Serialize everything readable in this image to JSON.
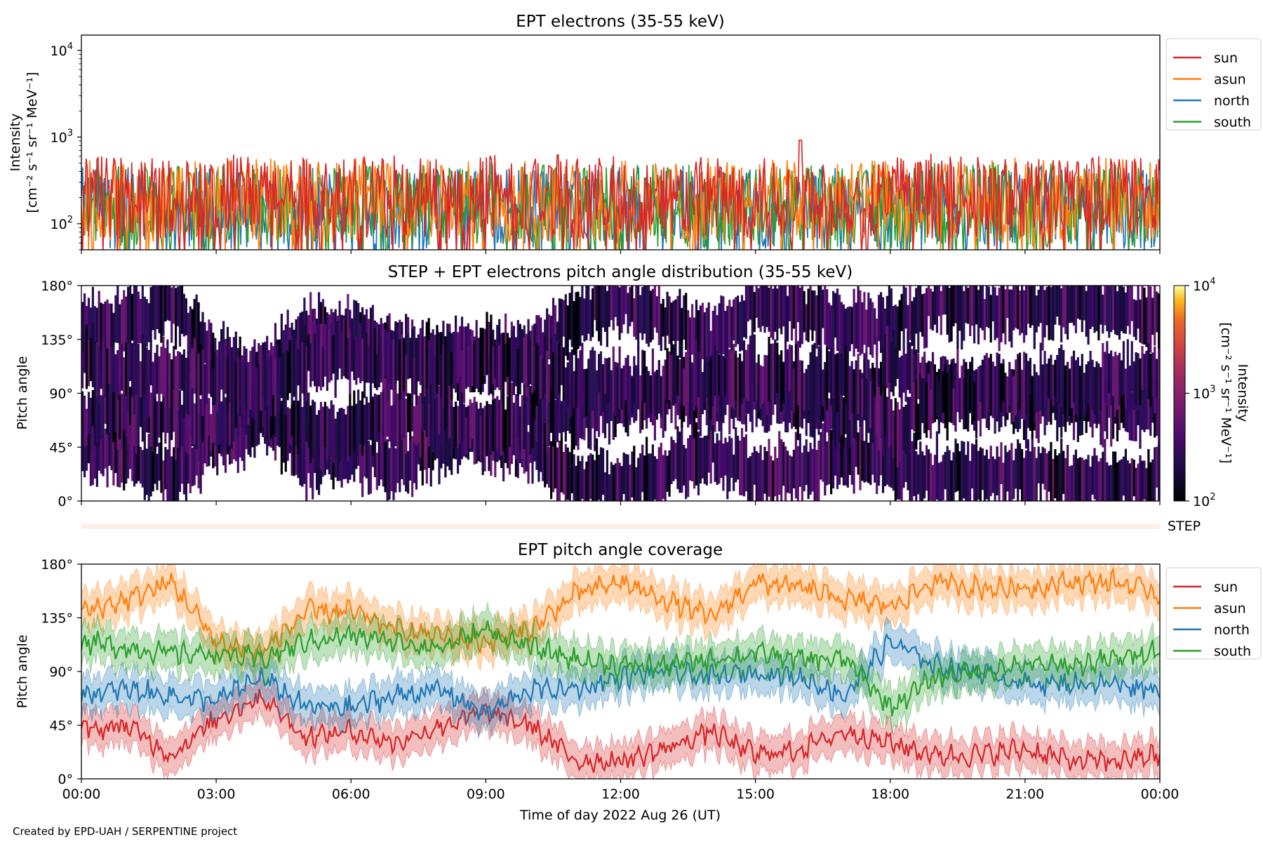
{
  "figure": {
    "xlabel": "Time of day 2022 Aug 26 (UT)",
    "credit": "Created by EPD-UAH / SERPENTINE project",
    "xticks": [
      "00:00",
      "03:00",
      "06:00",
      "09:00",
      "12:00",
      "15:00",
      "18:00",
      "21:00",
      "00:00"
    ]
  },
  "chart_data": [
    {
      "type": "line",
      "title": "EPT electrons (35-55 keV)",
      "ylabel_line1": "Intensity",
      "ylabel_line2": "[cm⁻² s⁻¹ sr⁻¹ MeV⁻¹]",
      "yscale": "log",
      "ylim": [
        50,
        15000
      ],
      "yticks": [
        {
          "value": 100,
          "base": "10",
          "exp": "2"
        },
        {
          "value": 1000,
          "base": "10",
          "exp": "3"
        },
        {
          "value": 10000,
          "base": "10",
          "exp": "4"
        }
      ],
      "legend_position": "outside right",
      "series": [
        {
          "name": "sun",
          "color": "#d62728",
          "typical": 200,
          "peak": 920,
          "peak_time_h": 16.0
        },
        {
          "name": "asun",
          "color": "#ff7f0e",
          "typical": 180,
          "peak": 800
        },
        {
          "name": "north",
          "color": "#1f77b4",
          "typical": 150,
          "peak": 650
        },
        {
          "name": "south",
          "color": "#2ca02c",
          "typical": 160,
          "peak": 750
        }
      ]
    },
    {
      "type": "heatmap",
      "title": "STEP + EPT electrons pitch angle distribution (35-55 keV)",
      "ylabel": "Pitch angle",
      "ylim": [
        0,
        180
      ],
      "yticks": [
        "0°",
        "45°",
        "90°",
        "135°",
        "180°"
      ],
      "colorbar": {
        "scale": "log",
        "range": [
          100,
          10000
        ],
        "colormap": "inferno",
        "ticks": [
          {
            "base": "10",
            "exp": "2"
          },
          {
            "base": "10",
            "exp": "3"
          },
          {
            "base": "10",
            "exp": "4"
          }
        ],
        "label": "Intensity\n[cm⁻² s⁻¹ sr⁻¹ MeV⁻¹]"
      },
      "step_label": "STEP"
    },
    {
      "type": "line",
      "title": "EPT pitch angle coverage",
      "ylabel": "Pitch angle",
      "ylim": [
        0,
        180
      ],
      "yticks": [
        "0°",
        "45°",
        "90°",
        "135°",
        "180°"
      ],
      "legend_position": "outside right",
      "shaded_band": "±15°",
      "series": [
        {
          "name": "sun",
          "color": "#d62728",
          "x_hours": [
            0,
            1,
            2,
            3,
            4,
            5,
            6,
            7,
            8,
            9,
            10,
            11,
            12,
            13,
            14,
            15,
            16,
            17,
            18,
            19,
            20,
            21,
            22,
            23,
            24
          ],
          "values": [
            40,
            45,
            20,
            50,
            70,
            35,
            40,
            30,
            45,
            55,
            45,
            15,
            15,
            25,
            40,
            20,
            25,
            40,
            30,
            20,
            20,
            25,
            15,
            15,
            20
          ]
        },
        {
          "name": "asun",
          "color": "#ff7f0e",
          "x_hours": [
            0,
            1,
            2,
            3,
            4,
            5,
            6,
            7,
            8,
            9,
            10,
            11,
            12,
            13,
            14,
            15,
            16,
            17,
            18,
            19,
            20,
            21,
            22,
            23,
            24
          ],
          "values": [
            140,
            150,
            165,
            115,
            105,
            140,
            140,
            125,
            120,
            115,
            125,
            155,
            165,
            150,
            135,
            165,
            160,
            150,
            145,
            165,
            160,
            160,
            165,
            165,
            155
          ]
        },
        {
          "name": "north",
          "color": "#1f77b4",
          "x_hours": [
            0,
            1,
            2,
            3,
            4,
            5,
            6,
            7,
            8,
            9,
            10,
            11,
            12,
            13,
            14,
            15,
            16,
            17,
            18,
            19,
            20,
            21,
            22,
            23,
            24
          ],
          "values": [
            70,
            75,
            70,
            65,
            85,
            60,
            60,
            70,
            75,
            55,
            75,
            75,
            85,
            90,
            85,
            90,
            85,
            70,
            115,
            95,
            90,
            80,
            80,
            80,
            75
          ]
        },
        {
          "name": "south",
          "color": "#2ca02c",
          "x_hours": [
            0,
            1,
            2,
            3,
            4,
            5,
            6,
            7,
            8,
            9,
            10,
            11,
            12,
            13,
            14,
            15,
            16,
            17,
            18,
            19,
            20,
            21,
            22,
            23,
            24
          ],
          "values": [
            115,
            110,
            105,
            105,
            100,
            115,
            120,
            115,
            110,
            125,
            110,
            100,
            95,
            95,
            100,
            105,
            100,
            100,
            60,
            85,
            90,
            95,
            95,
            100,
            110
          ]
        }
      ]
    }
  ]
}
